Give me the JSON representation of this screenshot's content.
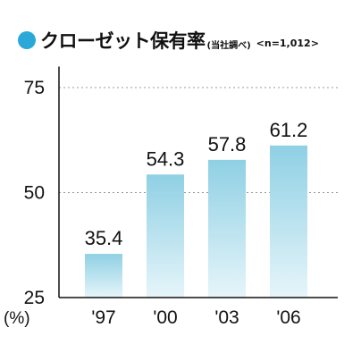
{
  "title": {
    "main": "クローゼット保有率",
    "note": "(当社調べ)",
    "sample": "<n=1,012>"
  },
  "colors": {
    "accent": "#2aa9d8",
    "bar_top": "#8fd0e4",
    "bar_bottom": "#e6f5fa",
    "grid": "#999999",
    "axis": "#111111"
  },
  "chart_data": {
    "type": "bar",
    "categories": [
      "'97",
      "'00",
      "'03",
      "'06"
    ],
    "values": [
      35.4,
      54.3,
      57.8,
      61.2
    ],
    "value_labels": [
      "35.4",
      "54.3",
      "57.8",
      "61.2"
    ],
    "title": "クローゼット保有率",
    "ylabel": "(%)",
    "ylim": [
      25,
      80
    ],
    "yticks": [
      25,
      50,
      75
    ],
    "grid": true
  }
}
